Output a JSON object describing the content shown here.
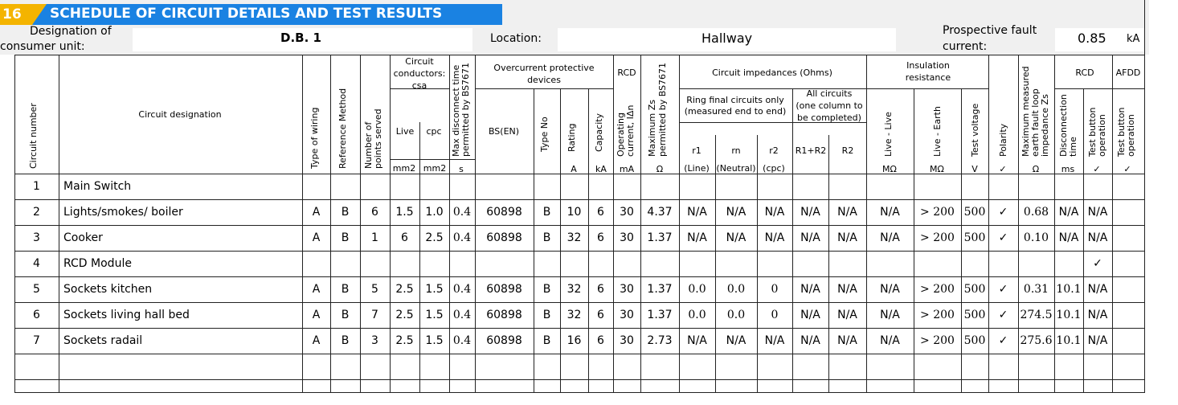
{
  "section": {
    "number": "16",
    "title": "SCHEDULE OF CIRCUIT DETAILS AND TEST RESULTS"
  },
  "info": {
    "designation_label_1": "Designation of",
    "designation_label_2": "consumer unit:",
    "designation_value": "D.B. 1",
    "location_label": "Location:",
    "location_value": "Hallway",
    "fault_label_1": "Prospective fault",
    "fault_label_2": "current:",
    "fault_value": "0.85",
    "fault_unit": "kA"
  },
  "headers": {
    "circuit_number": "Circuit number",
    "circuit_designation": "Circuit designation",
    "type_of_wiring": "Type of wiring",
    "reference_method": "Reference Method",
    "points_served_1": "Number of",
    "points_served_2": "points served",
    "conductors_1": "Circuit",
    "conductors_2": "conductors:",
    "conductors_3": "csa",
    "live": "Live",
    "cpc": "cpc",
    "max_disconnect_1": "Max disconnect time",
    "max_disconnect_2": "permitted by BS7671",
    "ocpd_1": "Overcurrent protective",
    "ocpd_2": "devices",
    "bs_en": "BS(EN)",
    "type_no": "Type No",
    "rating": "Rating",
    "capacity": "Capacity",
    "rcd": "RCD",
    "operating_1": "Operating",
    "operating_2": "current, IΔn",
    "max_zs_1": "Maximum Zs",
    "max_zs_2": "permitted by BS7671",
    "impedances": "Circuit impedances (Ohms)",
    "ring_1": "Ring final circuits only",
    "ring_2": "(measured end to end)",
    "all_1": "All circuits",
    "all_2": "(one column to",
    "all_3": "be completed)",
    "r1": "r1",
    "rn": "rn",
    "r2": "r2",
    "r1r2": "R1+R2",
    "R2": "R2",
    "line": "(Line)",
    "neutral": "(Neutral)",
    "cpc_paren": "(cpc)",
    "insulation_1": "Insulation",
    "insulation_2": "resistance",
    "live_live": "Live - Live",
    "live_earth": "Live - Earth",
    "test_voltage": "Test voltage",
    "polarity": "Polarity",
    "max_measured_1": "Maximum measured",
    "max_measured_2": "earth fault loop",
    "max_measured_3": "impedance Zs",
    "rcd2": "RCD",
    "disconnection_1": "Disconnection",
    "disconnection_2": "time",
    "test_button_1": "Test button",
    "test_button_2": "operation",
    "afdd": "AFDD"
  },
  "units": {
    "mm2a": "mm2",
    "mm2b": "mm2",
    "s": "s",
    "A": "A",
    "kA": "kA",
    "mA": "mA",
    "ohm1": "Ω",
    "mohm1": "MΩ",
    "mohm2": "MΩ",
    "V": "V",
    "tick1": "✓",
    "ohm2": "Ω",
    "ms": "ms",
    "tick2": "✓",
    "tick3": "✓"
  },
  "rows": [
    {
      "no": "1",
      "designation": "Main Switch",
      "wiring": "",
      "ref": "",
      "points": "",
      "live": "",
      "cpc": "",
      "maxdisc": "",
      "bsen": "",
      "typeno": "",
      "rating": "",
      "capacity": "",
      "rcdop": "",
      "maxzs": "",
      "r1": "",
      "rn": "",
      "r2": "",
      "r1r2": "",
      "R2": "",
      "ll": "",
      "le": "",
      "tv": "",
      "pol": "",
      "zs": "",
      "disc": "",
      "tb": "",
      "afdd": ""
    },
    {
      "no": "2",
      "designation": "Lights/smokes/ boiler",
      "wiring": "A",
      "ref": "B",
      "points": "6",
      "live": "1.5",
      "cpc": "1.0",
      "maxdisc": "0.4",
      "bsen": "60898",
      "typeno": "B",
      "rating": "10",
      "capacity": "6",
      "rcdop": "30",
      "maxzs": "4.37",
      "r1": "N/A",
      "rn": "N/A",
      "r2": "N/A",
      "r1r2": "N/A",
      "R2": "N/A",
      "ll": "N/A",
      "le": "> 200",
      "tv": "500",
      "pol": "✓",
      "zs": "0.68",
      "disc": "N/A",
      "tb": "N/A",
      "afdd": ""
    },
    {
      "no": "3",
      "designation": "Cooker",
      "wiring": "A",
      "ref": "B",
      "points": "1",
      "live": "6",
      "cpc": "2.5",
      "maxdisc": "0.4",
      "bsen": "60898",
      "typeno": "B",
      "rating": "32",
      "capacity": "6",
      "rcdop": "30",
      "maxzs": "1.37",
      "r1": "N/A",
      "rn": "N/A",
      "r2": "N/A",
      "r1r2": "N/A",
      "R2": "N/A",
      "ll": "N/A",
      "le": "> 200",
      "tv": "500",
      "pol": "✓",
      "zs": "0.10",
      "disc": "N/A",
      "tb": "N/A",
      "afdd": ""
    },
    {
      "no": "4",
      "designation": "RCD Module",
      "wiring": "",
      "ref": "",
      "points": "",
      "live": "",
      "cpc": "",
      "maxdisc": "",
      "bsen": "",
      "typeno": "",
      "rating": "",
      "capacity": "",
      "rcdop": "",
      "maxzs": "",
      "r1": "",
      "rn": "",
      "r2": "",
      "r1r2": "",
      "R2": "",
      "ll": "",
      "le": "",
      "tv": "",
      "pol": "",
      "zs": "",
      "disc": "",
      "tb": "✓",
      "afdd": ""
    },
    {
      "no": "5",
      "designation": "Sockets kitchen",
      "wiring": "A",
      "ref": "B",
      "points": "5",
      "live": "2.5",
      "cpc": "1.5",
      "maxdisc": "0.4",
      "bsen": "60898",
      "typeno": "B",
      "rating": "32",
      "capacity": "6",
      "rcdop": "30",
      "maxzs": "1.37",
      "r1": "0.0",
      "rn": "0.0",
      "r2": "0",
      "r1r2": "N/A",
      "R2": "N/A",
      "ll": "N/A",
      "le": "> 200",
      "tv": "500",
      "pol": "✓",
      "zs": "0.31",
      "disc": "10.1",
      "tb": "N/A",
      "afdd": ""
    },
    {
      "no": "6",
      "designation": "Sockets living hall bed",
      "wiring": "A",
      "ref": "B",
      "points": "7",
      "live": "2.5",
      "cpc": "1.5",
      "maxdisc": "0.4",
      "bsen": "60898",
      "typeno": "B",
      "rating": "32",
      "capacity": "6",
      "rcdop": "30",
      "maxzs": "1.37",
      "r1": "0.0",
      "rn": "0.0",
      "r2": "0",
      "r1r2": "N/A",
      "R2": "N/A",
      "ll": "N/A",
      "le": "> 200",
      "tv": "500",
      "pol": "✓",
      "zs": "274.5",
      "disc": "10.1",
      "tb": "N/A",
      "afdd": ""
    },
    {
      "no": "7",
      "designation": "Sockets radail",
      "wiring": "A",
      "ref": "B",
      "points": "3",
      "live": "2.5",
      "cpc": "1.5",
      "maxdisc": "0.4",
      "bsen": "60898",
      "typeno": "B",
      "rating": "16",
      "capacity": "6",
      "rcdop": "30",
      "maxzs": "2.73",
      "r1": "N/A",
      "rn": "N/A",
      "r2": "N/A",
      "r1r2": "N/A",
      "R2": "N/A",
      "ll": "N/A",
      "le": "> 200",
      "tv": "500",
      "pol": "✓",
      "zs": "275.6",
      "disc": "10.1",
      "tb": "N/A",
      "afdd": ""
    },
    {
      "no": "",
      "designation": "",
      "wiring": "",
      "ref": "",
      "points": "",
      "live": "",
      "cpc": "",
      "maxdisc": "",
      "bsen": "",
      "typeno": "",
      "rating": "",
      "capacity": "",
      "rcdop": "",
      "maxzs": "",
      "r1": "",
      "rn": "",
      "r2": "",
      "r1r2": "",
      "R2": "",
      "ll": "",
      "le": "",
      "tv": "",
      "pol": "",
      "zs": "",
      "disc": "",
      "tb": "",
      "afdd": ""
    },
    {
      "no": "",
      "designation": "",
      "wiring": "",
      "ref": "",
      "points": "",
      "live": "",
      "cpc": "",
      "maxdisc": "",
      "bsen": "",
      "typeno": "",
      "rating": "",
      "capacity": "",
      "rcdop": "",
      "maxzs": "",
      "r1": "",
      "rn": "",
      "r2": "",
      "r1r2": "",
      "R2": "",
      "ll": "",
      "le": "",
      "tv": "",
      "pol": "",
      "zs": "",
      "disc": "",
      "tb": "",
      "afdd": ""
    }
  ],
  "colors": {
    "banner_blue": "#1a82e2",
    "badge_yellow": "#f4b400",
    "panel_grey": "#f0f0f0",
    "rule": "#222222"
  }
}
